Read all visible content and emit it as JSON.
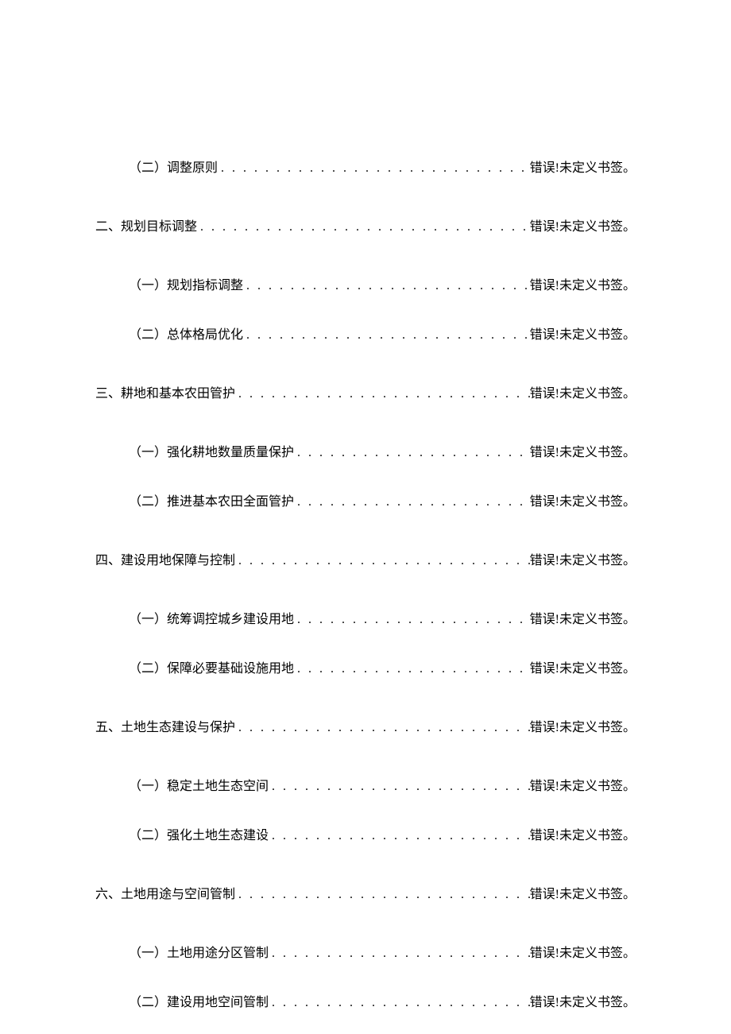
{
  "colors": {
    "text": "#000000",
    "background": "#ffffff"
  },
  "typography": {
    "fontFamily": "SimSun",
    "fontSize": 16,
    "lineHeight": 1.5
  },
  "errorText": "错误!未定义书签。",
  "dotsChar": ".",
  "entries": [
    {
      "level": 2,
      "label": "（二）调整原则",
      "page": "错误!未定义书签。",
      "extraTop": false
    },
    {
      "level": 1,
      "label": "二、规划目标调整",
      "page": "错误!未定义书签。",
      "extraTop": true
    },
    {
      "level": 2,
      "label": "（一）规划指标调整",
      "page": "错误!未定义书签。",
      "extraTop": true
    },
    {
      "level": 2,
      "label": "（二）总体格局优化",
      "page": "错误!未定义书签。",
      "extraTop": false
    },
    {
      "level": 1,
      "label": "三、耕地和基本农田管护",
      "page": "错误!未定义书签。",
      "extraTop": true
    },
    {
      "level": 2,
      "label": "（一）强化耕地数量质量保护",
      "page": "错误!未定义书签。",
      "extraTop": true
    },
    {
      "level": 2,
      "label": "（二）推进基本农田全面管护",
      "page": "错误!未定义书签。",
      "extraTop": false
    },
    {
      "level": 1,
      "label": "四、建设用地保障与控制",
      "page": "错误!未定义书签。",
      "extraTop": true
    },
    {
      "level": 2,
      "label": "（一）统筹调控城乡建设用地",
      "page": "错误!未定义书签。",
      "extraTop": true
    },
    {
      "level": 2,
      "label": "（二）保障必要基础设施用地",
      "page": "错误!未定义书签。",
      "extraTop": false
    },
    {
      "level": 1,
      "label": "五、土地生态建设与保护",
      "page": "错误!未定义书签。",
      "extraTop": true
    },
    {
      "level": 2,
      "label": "（一）稳定土地生态空间",
      "page": "错误!未定义书签。",
      "extraTop": true
    },
    {
      "level": 2,
      "label": "（二）强化土地生态建设",
      "page": "错误!未定义书签。",
      "extraTop": false
    },
    {
      "level": 1,
      "label": "六、土地用途与空间管制",
      "page": "错误!未定义书签。",
      "extraTop": true
    },
    {
      "level": 2,
      "label": "（一）土地用途分区管制",
      "page": "错误!未定义书签。",
      "extraTop": true
    },
    {
      "level": 2,
      "label": "（二）建设用地空间管制",
      "page": "错误!未定义书签。",
      "extraTop": false
    }
  ]
}
